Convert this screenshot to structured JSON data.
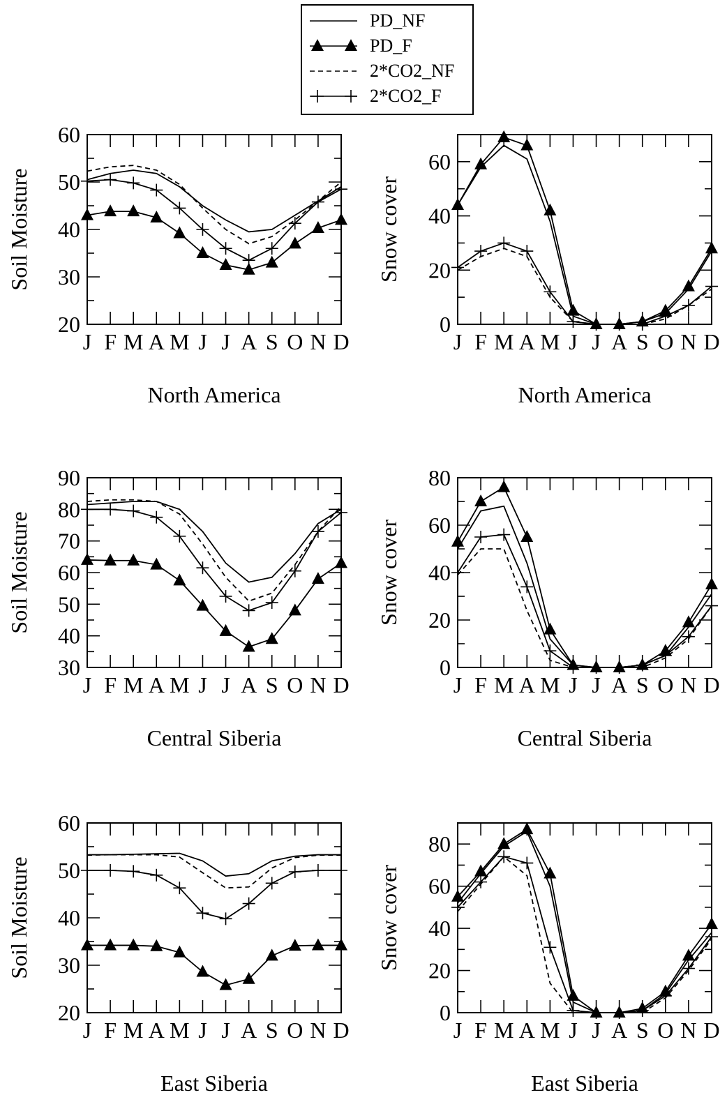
{
  "legend": {
    "entries": [
      {
        "label": "PD_NF",
        "style": "solid",
        "marker": "none"
      },
      {
        "label": "PD_F",
        "style": "solid",
        "marker": "triangle"
      },
      {
        "label": "2*CO2_NF",
        "style": "dashed",
        "marker": "none"
      },
      {
        "label": "2*CO2_F",
        "style": "solid",
        "marker": "plus"
      }
    ]
  },
  "chart_data": [
    {
      "type": "line",
      "region": "North America",
      "ylabel": "Soil Moisture",
      "categories": [
        "J",
        "F",
        "M",
        "A",
        "M",
        "J",
        "J",
        "A",
        "S",
        "O",
        "N",
        "D"
      ],
      "ylim": [
        20,
        60
      ],
      "yticks": [
        20,
        30,
        40,
        50,
        60
      ],
      "series": [
        {
          "name": "PD_NF",
          "values": [
            50.5,
            51.8,
            52.5,
            51.8,
            49.0,
            45.0,
            42.0,
            39.5,
            40.0,
            43.0,
            46.0,
            49.0
          ]
        },
        {
          "name": "PD_F",
          "values": [
            43.0,
            43.8,
            43.8,
            42.5,
            39.2,
            35.0,
            32.5,
            31.5,
            33.0,
            37.0,
            40.3,
            42.0
          ]
        },
        {
          "name": "2*CO2_NF",
          "values": [
            52.3,
            53.2,
            53.5,
            52.5,
            49.5,
            44.5,
            40.0,
            37.0,
            38.5,
            42.0,
            46.0,
            50.0
          ]
        },
        {
          "name": "2*CO2_F",
          "values": [
            50.2,
            50.5,
            49.8,
            48.3,
            44.5,
            40.0,
            36.0,
            33.5,
            36.0,
            41.3,
            45.8,
            48.5
          ]
        }
      ]
    },
    {
      "type": "line",
      "region": "North America",
      "ylabel": "Snow cover",
      "categories": [
        "J",
        "F",
        "M",
        "A",
        "M",
        "J",
        "J",
        "A",
        "S",
        "O",
        "N",
        "D"
      ],
      "ylim": [
        0,
        70
      ],
      "yticks": [
        0,
        20,
        40,
        60
      ],
      "series": [
        {
          "name": "PD_NF",
          "values": [
            44,
            58,
            66,
            61,
            38,
            3,
            0,
            0,
            1,
            4,
            13,
            27
          ]
        },
        {
          "name": "PD_F",
          "values": [
            44,
            59,
            69,
            66,
            42,
            5,
            0,
            0,
            1,
            5,
            14,
            28
          ]
        },
        {
          "name": "2*CO2_NF",
          "values": [
            20,
            25,
            28,
            25,
            10,
            1,
            0,
            0,
            0,
            2,
            7,
            13
          ]
        },
        {
          "name": "2*CO2_F",
          "values": [
            21,
            27,
            30,
            27,
            12,
            1,
            0,
            0,
            0,
            3,
            7,
            14
          ]
        }
      ]
    },
    {
      "type": "line",
      "region": "Central Siberia",
      "ylabel": "Soil Moisture",
      "categories": [
        "J",
        "F",
        "M",
        "A",
        "M",
        "J",
        "J",
        "A",
        "S",
        "O",
        "N",
        "D"
      ],
      "ylim": [
        30,
        90
      ],
      "yticks": [
        30,
        40,
        50,
        60,
        70,
        80,
        90
      ],
      "series": [
        {
          "name": "PD_NF",
          "values": [
            81.5,
            82.0,
            82.5,
            82.5,
            80.0,
            73.0,
            63.0,
            57.0,
            58.5,
            66.0,
            75.5,
            80.0
          ]
        },
        {
          "name": "PD_F",
          "values": [
            64.0,
            63.8,
            63.8,
            62.5,
            57.5,
            49.5,
            41.5,
            36.5,
            39.0,
            48.0,
            58.0,
            63.0
          ]
        },
        {
          "name": "2*CO2_NF",
          "values": [
            82.5,
            83.0,
            83.0,
            82.5,
            78.5,
            69.0,
            58.5,
            51.0,
            53.5,
            62.5,
            73.0,
            81.0
          ]
        },
        {
          "name": "2*CO2_F",
          "values": [
            80.0,
            80.0,
            79.5,
            77.5,
            71.5,
            61.5,
            52.5,
            48.0,
            50.5,
            60.5,
            73.0,
            79.0
          ]
        }
      ]
    },
    {
      "type": "line",
      "region": "Central Siberia",
      "ylabel": "Snow cover",
      "categories": [
        "J",
        "F",
        "M",
        "A",
        "M",
        "J",
        "J",
        "A",
        "S",
        "O",
        "N",
        "D"
      ],
      "ylim": [
        0,
        80
      ],
      "yticks": [
        0,
        20,
        40,
        60,
        80
      ],
      "series": [
        {
          "name": "PD_NF",
          "values": [
            50,
            66,
            68,
            44,
            12,
            1,
            0,
            0,
            1,
            5,
            17,
            31
          ]
        },
        {
          "name": "PD_F",
          "values": [
            53,
            70,
            76,
            55,
            16,
            1,
            0,
            0,
            1,
            7,
            19,
            35
          ]
        },
        {
          "name": "2*CO2_NF",
          "values": [
            39,
            50,
            50,
            24,
            3,
            0,
            0,
            0,
            0,
            4,
            12,
            26
          ]
        },
        {
          "name": "2*CO2_F",
          "values": [
            40,
            55,
            56,
            34,
            7,
            0,
            0,
            0,
            1,
            5,
            13,
            26
          ]
        }
      ]
    },
    {
      "type": "line",
      "region": "East Siberia",
      "ylabel": "Soil Moisture",
      "categories": [
        "J",
        "F",
        "M",
        "A",
        "M",
        "J",
        "J",
        "A",
        "S",
        "O",
        "N",
        "D"
      ],
      "ylim": [
        20,
        60
      ],
      "yticks": [
        20,
        30,
        40,
        50,
        60
      ],
      "series": [
        {
          "name": "PD_NF",
          "values": [
            53.3,
            53.3,
            53.4,
            53.5,
            53.6,
            52.0,
            48.8,
            49.3,
            52.0,
            53.0,
            53.3,
            53.3
          ]
        },
        {
          "name": "PD_F",
          "values": [
            34.2,
            34.2,
            34.2,
            34.0,
            32.7,
            28.6,
            25.8,
            27.1,
            32.0,
            34.1,
            34.2,
            34.2
          ]
        },
        {
          "name": "2*CO2_NF",
          "values": [
            53.2,
            53.3,
            53.3,
            53.3,
            52.8,
            49.5,
            46.3,
            46.5,
            50.5,
            52.7,
            53.2,
            53.2
          ]
        },
        {
          "name": "2*CO2_F",
          "values": [
            50.0,
            50.0,
            49.8,
            49.0,
            46.3,
            41.0,
            39.8,
            43.0,
            47.3,
            49.7,
            50.0,
            50.0
          ]
        }
      ]
    },
    {
      "type": "line",
      "region": "East Siberia",
      "ylabel": "Snow cover",
      "categories": [
        "J",
        "F",
        "M",
        "A",
        "M",
        "J",
        "J",
        "A",
        "S",
        "O",
        "N",
        "D"
      ],
      "ylim": [
        0,
        90
      ],
      "yticks": [
        0,
        20,
        40,
        60,
        80
      ],
      "series": [
        {
          "name": "PD_NF",
          "values": [
            52,
            66,
            79,
            86,
            60,
            5,
            0,
            0,
            1,
            9,
            25,
            38
          ]
        },
        {
          "name": "PD_F",
          "values": [
            55,
            67,
            80,
            87,
            66,
            8,
            0,
            0,
            2,
            10,
            27,
            42
          ]
        },
        {
          "name": "2*CO2_NF",
          "values": [
            48,
            61,
            74,
            65,
            14,
            0,
            0,
            0,
            0,
            7,
            20,
            35
          ]
        },
        {
          "name": "2*CO2_F",
          "values": [
            50,
            62,
            74,
            71,
            31,
            1,
            0,
            0,
            1,
            8,
            21,
            36
          ]
        }
      ]
    }
  ]
}
